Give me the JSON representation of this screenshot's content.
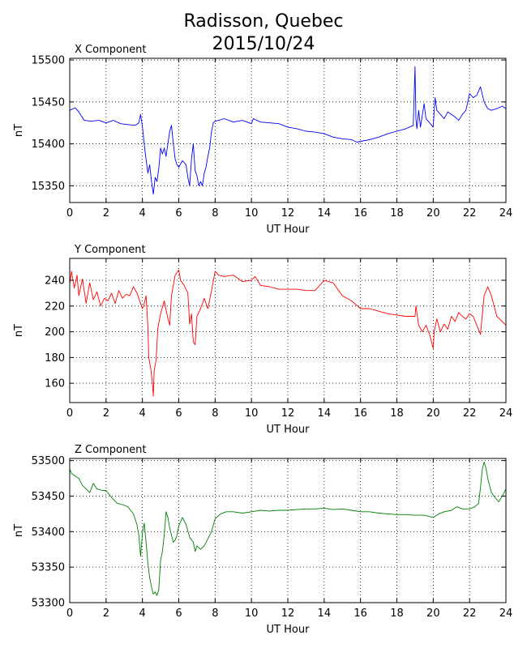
{
  "title_line1": "Radisson, Quebec",
  "title_line2": "2015/10/24",
  "chart_data": [
    {
      "type": "line",
      "title": "X Component",
      "xlabel": "UT Hour",
      "ylabel": "nT",
      "color": "#0000ff",
      "xlim": [
        0,
        24
      ],
      "ylim": [
        15330,
        15502
      ],
      "xticks": [
        0,
        2,
        4,
        6,
        8,
        10,
        12,
        14,
        16,
        18,
        20,
        22,
        24
      ],
      "yticks": [
        15350,
        15400,
        15450,
        15500
      ],
      "grid": true,
      "x": [
        0,
        0.3,
        0.5,
        0.8,
        1.2,
        1.6,
        2.0,
        2.4,
        2.8,
        3.2,
        3.6,
        3.8,
        3.9,
        4.0,
        4.15,
        4.3,
        4.4,
        4.5,
        4.6,
        4.7,
        4.8,
        4.9,
        5.0,
        5.1,
        5.2,
        5.3,
        5.4,
        5.5,
        5.6,
        5.7,
        5.8,
        5.9,
        6.0,
        6.2,
        6.4,
        6.5,
        6.6,
        6.7,
        6.8,
        6.9,
        7.0,
        7.1,
        7.2,
        7.3,
        7.4,
        7.5,
        7.6,
        7.7,
        7.8,
        7.9,
        8.0,
        8.2,
        8.5,
        9.0,
        9.5,
        10.0,
        10.1,
        10.5,
        11.0,
        11.5,
        12.0,
        12.5,
        13.0,
        13.5,
        14.0,
        14.5,
        15.0,
        15.5,
        15.8,
        16.0,
        16.5,
        17.0,
        17.5,
        18.0,
        18.5,
        18.9,
        19.0,
        19.05,
        19.1,
        19.2,
        19.3,
        19.5,
        19.6,
        19.8,
        20.0,
        20.1,
        20.2,
        20.4,
        20.6,
        20.8,
        21.0,
        21.2,
        21.4,
        21.6,
        21.8,
        22.0,
        22.2,
        22.4,
        22.6,
        22.8,
        23.0,
        23.2,
        23.5,
        23.8,
        24.0
      ],
      "values": [
        15440,
        15443,
        15438,
        15428,
        15427,
        15428,
        15425,
        15428,
        15424,
        15423,
        15422,
        15425,
        15435,
        15420,
        15390,
        15365,
        15375,
        15355,
        15340,
        15360,
        15355,
        15370,
        15395,
        15388,
        15395,
        15385,
        15400,
        15415,
        15422,
        15400,
        15382,
        15375,
        15372,
        15380,
        15375,
        15360,
        15350,
        15382,
        15400,
        15368,
        15362,
        15350,
        15355,
        15350,
        15365,
        15372,
        15385,
        15395,
        15415,
        15425,
        15427,
        15428,
        15430,
        15426,
        15428,
        15424,
        15430,
        15426,
        15425,
        15424,
        15420,
        15418,
        15415,
        15414,
        15412,
        15408,
        15406,
        15405,
        15402,
        15403,
        15405,
        15408,
        15412,
        15415,
        15418,
        15422,
        15492,
        15430,
        15418,
        15440,
        15420,
        15448,
        15430,
        15425,
        15420,
        15455,
        15440,
        15435,
        15430,
        15438,
        15435,
        15432,
        15428,
        15435,
        15440,
        15460,
        15455,
        15458,
        15468,
        15450,
        15442,
        15440,
        15442,
        15445,
        15442
      ]
    },
    {
      "type": "line",
      "title": "Y Component",
      "xlabel": "UT Hour",
      "ylabel": "nT",
      "color": "#ff0000",
      "xlim": [
        0,
        24
      ],
      "ylim": [
        145,
        257
      ],
      "xticks": [
        0,
        2,
        4,
        6,
        8,
        10,
        12,
        14,
        16,
        18,
        20,
        22,
        24
      ],
      "yticks": [
        160,
        180,
        200,
        220,
        240
      ],
      "grid": true,
      "x": [
        0,
        0.1,
        0.25,
        0.4,
        0.5,
        0.7,
        0.9,
        1.1,
        1.3,
        1.5,
        1.7,
        1.9,
        2.1,
        2.3,
        2.5,
        2.7,
        2.9,
        3.1,
        3.3,
        3.5,
        3.7,
        3.9,
        4.0,
        4.1,
        4.2,
        4.3,
        4.35,
        4.45,
        4.55,
        4.6,
        4.65,
        4.75,
        4.85,
        5.0,
        5.2,
        5.4,
        5.5,
        5.6,
        5.8,
        6.0,
        6.1,
        6.3,
        6.5,
        6.6,
        6.7,
        6.8,
        6.9,
        7.0,
        7.2,
        7.4,
        7.6,
        7.8,
        8.0,
        8.2,
        8.5,
        9.0,
        9.5,
        10.0,
        10.2,
        10.5,
        11.0,
        11.5,
        12.0,
        12.5,
        13.0,
        13.5,
        14.0,
        14.5,
        15.0,
        15.5,
        16.0,
        16.5,
        17.0,
        17.5,
        18.0,
        18.5,
        19.0,
        19.05,
        19.2,
        19.4,
        19.6,
        19.8,
        20.0,
        20.05,
        20.2,
        20.4,
        20.6,
        20.8,
        21.0,
        21.2,
        21.4,
        21.6,
        21.8,
        22.0,
        22.2,
        22.4,
        22.6,
        22.8,
        23.0,
        23.2,
        23.5,
        23.8,
        24.0
      ],
      "values": [
        237,
        247,
        234,
        244,
        228,
        241,
        222,
        238,
        225,
        231,
        220,
        226,
        224,
        230,
        222,
        232,
        226,
        229,
        228,
        235,
        230,
        222,
        218,
        222,
        228,
        204,
        180,
        172,
        160,
        150,
        170,
        178,
        203,
        214,
        224,
        210,
        205,
        228,
        244,
        248,
        240,
        236,
        230,
        206,
        214,
        192,
        190,
        212,
        218,
        226,
        218,
        232,
        247,
        244,
        243,
        244,
        239,
        240,
        243,
        236,
        235,
        233,
        233,
        233,
        232,
        232,
        240,
        238,
        228,
        224,
        218,
        218,
        216,
        214,
        213,
        212,
        212,
        220,
        205,
        200,
        205,
        198,
        187,
        200,
        210,
        200,
        206,
        202,
        212,
        208,
        215,
        212,
        210,
        214,
        212,
        205,
        198,
        228,
        235,
        228,
        212,
        208,
        205
      ]
    },
    {
      "type": "line",
      "title": "Z Component",
      "xlabel": "UT Hour",
      "ylabel": "nT",
      "color": "#008000",
      "xlim": [
        0,
        24
      ],
      "ylim": [
        53300,
        53503
      ],
      "xticks": [
        0,
        2,
        4,
        6,
        8,
        10,
        12,
        14,
        16,
        18,
        20,
        22,
        24
      ],
      "yticks": [
        53300,
        53350,
        53400,
        53450,
        53500
      ],
      "grid": true,
      "x": [
        0,
        0.1,
        0.3,
        0.5,
        0.7,
        0.9,
        1.1,
        1.3,
        1.5,
        1.8,
        2.0,
        2.3,
        2.6,
        2.9,
        3.2,
        3.5,
        3.7,
        3.8,
        3.9,
        4.0,
        4.1,
        4.2,
        4.3,
        4.4,
        4.5,
        4.6,
        4.7,
        4.8,
        4.9,
        5.0,
        5.1,
        5.2,
        5.3,
        5.4,
        5.5,
        5.6,
        5.7,
        5.8,
        5.9,
        6.0,
        6.2,
        6.4,
        6.6,
        6.8,
        6.9,
        7.0,
        7.2,
        7.4,
        7.6,
        7.8,
        8.0,
        8.3,
        8.6,
        9.0,
        9.5,
        10.0,
        10.5,
        11.0,
        11.5,
        12.0,
        12.5,
        13.0,
        13.5,
        14.0,
        14.5,
        15.0,
        15.5,
        16.0,
        16.5,
        17.0,
        17.5,
        18.0,
        18.5,
        19.0,
        19.5,
        20.0,
        20.3,
        20.6,
        21.0,
        21.3,
        21.6,
        22.0,
        22.3,
        22.5,
        22.6,
        22.7,
        22.8,
        22.9,
        23.0,
        23.2,
        23.4,
        23.6,
        23.8,
        24.0
      ],
      "values": [
        53488,
        53482,
        53478,
        53475,
        53465,
        53460,
        53455,
        53468,
        53460,
        53458,
        53458,
        53448,
        53440,
        53438,
        53435,
        53425,
        53410,
        53395,
        53365,
        53398,
        53412,
        53385,
        53355,
        53335,
        53322,
        53312,
        53315,
        53310,
        53318,
        53360,
        53372,
        53395,
        53428,
        53420,
        53405,
        53395,
        53385,
        53388,
        53395,
        53408,
        53420,
        53410,
        53392,
        53385,
        53372,
        53380,
        53375,
        53380,
        53390,
        53400,
        53418,
        53425,
        53428,
        53428,
        53426,
        53428,
        53430,
        53429,
        53430,
        53430,
        53431,
        53432,
        53432,
        53433,
        53431,
        53432,
        53430,
        53428,
        53428,
        53426,
        53425,
        53424,
        53424,
        53423,
        53423,
        53420,
        53425,
        53428,
        53430,
        53435,
        53432,
        53432,
        53435,
        53440,
        53462,
        53488,
        53498,
        53490,
        53475,
        53455,
        53448,
        53442,
        53450,
        53460
      ]
    }
  ]
}
